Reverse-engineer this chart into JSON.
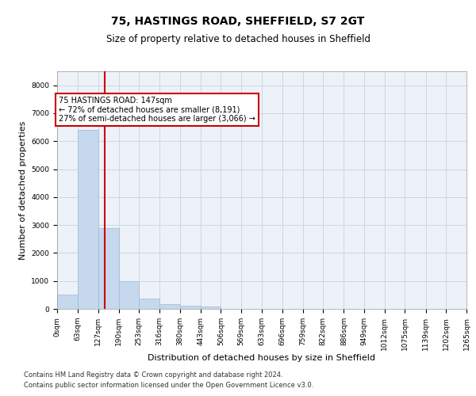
{
  "title": "75, HASTINGS ROAD, SHEFFIELD, S7 2GT",
  "subtitle": "Size of property relative to detached houses in Sheffield",
  "xlabel": "Distribution of detached houses by size in Sheffield",
  "ylabel": "Number of detached properties",
  "bar_color": "#c5d8ed",
  "bar_edge_color": "#a0b8d8",
  "grid_color": "#c8d8e8",
  "background_color": "#edf2f8",
  "vline_x": 147,
  "vline_color": "#cc0000",
  "annotation_text": "75 HASTINGS ROAD: 147sqm\n← 72% of detached houses are smaller (8,191)\n27% of semi-detached houses are larger (3,066) →",
  "annotation_box_color": "#ffffff",
  "annotation_box_edge_color": "#cc0000",
  "bin_edges": [
    0,
    63,
    127,
    190,
    253,
    316,
    380,
    443,
    506,
    569,
    633,
    696,
    759,
    822,
    886,
    949,
    1012,
    1075,
    1139,
    1202,
    1265
  ],
  "bin_labels": [
    "0sqm",
    "63sqm",
    "127sqm",
    "190sqm",
    "253sqm",
    "316sqm",
    "380sqm",
    "443sqm",
    "506sqm",
    "569sqm",
    "633sqm",
    "696sqm",
    "759sqm",
    "822sqm",
    "886sqm",
    "949sqm",
    "1012sqm",
    "1075sqm",
    "1139sqm",
    "1202sqm",
    "1265sqm"
  ],
  "bar_heights": [
    500,
    6400,
    2900,
    1000,
    380,
    170,
    110,
    80,
    0,
    0,
    0,
    0,
    0,
    0,
    0,
    0,
    0,
    0,
    0,
    0
  ],
  "ylim": [
    0,
    8500
  ],
  "yticks": [
    0,
    1000,
    2000,
    3000,
    4000,
    5000,
    6000,
    7000,
    8000
  ],
  "footer_line1": "Contains HM Land Registry data © Crown copyright and database right 2024.",
  "footer_line2": "Contains public sector information licensed under the Open Government Licence v3.0.",
  "title_fontsize": 10,
  "subtitle_fontsize": 8.5,
  "label_fontsize": 8,
  "tick_fontsize": 6.5,
  "footer_fontsize": 6,
  "annotation_fontsize": 7
}
